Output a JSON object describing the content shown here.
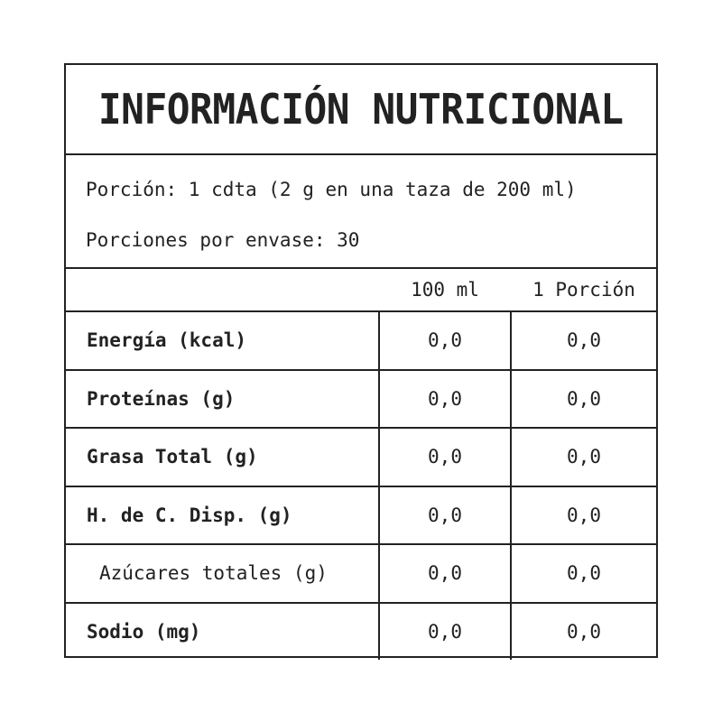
{
  "label": {
    "title": "INFORMACIÓN NUTRICIONAL",
    "serving_size": "Porción: 1 cdta (2 g en una taza de 200 ml)",
    "servings_per_container": "Porciones por envase: 30",
    "column_headers": [
      "100 ml",
      "1 Porción"
    ],
    "rows": [
      {
        "nutrient": "Energía (kcal)",
        "per_100ml": "0,0",
        "per_serving": "0,0",
        "bold": true
      },
      {
        "nutrient": "Proteínas (g)",
        "per_100ml": "0,0",
        "per_serving": "0,0",
        "bold": true
      },
      {
        "nutrient": "Grasa Total (g)",
        "per_100ml": "0,0",
        "per_serving": "0,0",
        "bold": true
      },
      {
        "nutrient": "H. de C. Disp. (g)",
        "per_100ml": "0,0",
        "per_serving": "0,0",
        "bold": true
      },
      {
        "nutrient": "Azúcares totales (g)",
        "per_100ml": "0,0",
        "per_serving": "0,0",
        "bold": false
      },
      {
        "nutrient": "Sodio (mg)",
        "per_100ml": "0,0",
        "per_serving": "0,0",
        "bold": true
      }
    ]
  },
  "colors": {
    "ink": "#222222",
    "background": "#ffffff"
  }
}
